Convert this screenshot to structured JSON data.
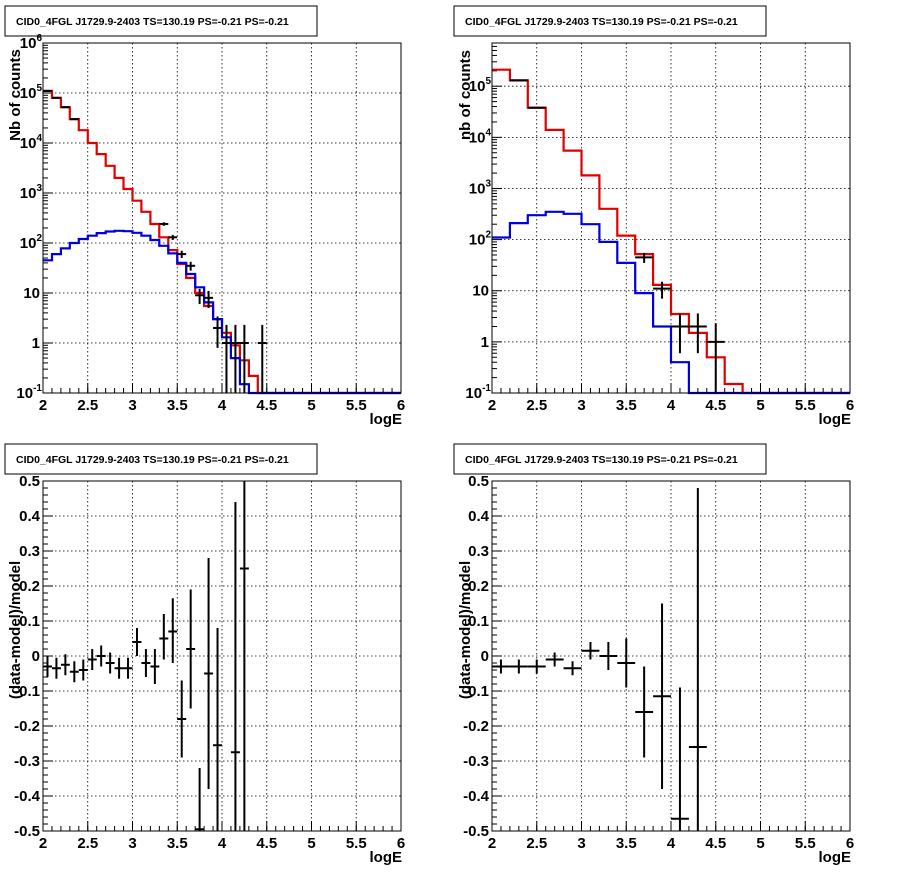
{
  "chart_data": [
    {
      "type": "histogram",
      "title": "CID0_4FGL J1729.9-2403 TS=130.19 PS=-0.21 PS=-0.21",
      "xlabel": "logE",
      "ylabel": "Nb of counts",
      "xlim": [
        2,
        6
      ],
      "ylim": [
        0.1,
        1000000
      ],
      "ylog": true,
      "grid": true,
      "bin_width": 0.1,
      "series": [
        {
          "color": "#e00000",
          "kind": "step",
          "x_start": 2.0,
          "values": [
            110000,
            80000,
            52000,
            30000,
            18000,
            10000,
            6000,
            3500,
            2000,
            1200,
            700,
            420,
            240,
            130,
            72,
            38,
            20,
            10,
            5.5,
            3,
            1.6,
            0.9,
            0.45,
            0.22,
            0.1,
            0.1,
            0.1,
            0.1,
            0.1,
            0.1,
            0.1,
            0.1,
            0.1,
            0.1,
            0.1,
            0.1,
            0.1,
            0.1,
            0.1,
            0.1
          ]
        },
        {
          "color": "#0000dd",
          "kind": "step",
          "x_start": 2.0,
          "values": [
            45,
            60,
            78,
            100,
            120,
            140,
            158,
            170,
            175,
            172,
            160,
            140,
            115,
            88,
            62,
            40,
            24,
            13,
            6.5,
            3,
            1.3,
            0.5,
            0.15,
            0.1,
            0.1,
            0.1,
            0.1,
            0.1,
            0.1,
            0.1,
            0.1,
            0.1,
            0.1,
            0.1,
            0.1,
            0.1,
            0.1,
            0.1,
            0.1,
            0.1
          ]
        },
        {
          "color": "#000000",
          "kind": "points",
          "points": [
            {
              "x": 2.05,
              "y": 110000,
              "lo": 109000,
              "hi": 111000
            },
            {
              "x": 2.15,
              "y": 80000,
              "lo": 79000,
              "hi": 81000
            },
            {
              "x": 2.25,
              "y": 52000,
              "lo": 51000,
              "hi": 53000
            },
            {
              "x": 2.35,
              "y": 30000,
              "lo": 29500,
              "hi": 30500
            },
            {
              "x": 3.35,
              "y": 240,
              "lo": 220,
              "hi": 260
            },
            {
              "x": 3.45,
              "y": 130,
              "lo": 115,
              "hi": 145
            },
            {
              "x": 3.55,
              "y": 60,
              "lo": 50,
              "hi": 70
            },
            {
              "x": 3.65,
              "y": 35,
              "lo": 28,
              "hi": 42
            },
            {
              "x": 3.75,
              "y": 9,
              "lo": 6,
              "hi": 12
            },
            {
              "x": 3.85,
              "y": 8,
              "lo": 5,
              "hi": 11
            },
            {
              "x": 3.95,
              "y": 2,
              "lo": 0.8,
              "hi": 3.4
            },
            {
              "x": 4.05,
              "y": 1,
              "lo": 0.1,
              "hi": 2.3
            },
            {
              "x": 4.15,
              "y": 1,
              "lo": 0.1,
              "hi": 2.3
            },
            {
              "x": 4.25,
              "y": 1,
              "lo": 0.1,
              "hi": 2.3
            },
            {
              "x": 4.45,
              "y": 1,
              "lo": 0.1,
              "hi": 2.3
            }
          ]
        }
      ],
      "x_ticks": [
        "2",
        "2.5",
        "3",
        "3.5",
        "4",
        "4.5",
        "5",
        "5.5",
        "6"
      ],
      "y_ticks": [
        {
          "base": "10",
          "exp": "-1"
        },
        {
          "base": "1",
          "exp": ""
        },
        {
          "base": "10",
          "exp": ""
        },
        {
          "base": "10",
          "exp": "2"
        },
        {
          "base": "10",
          "exp": "3"
        },
        {
          "base": "10",
          "exp": "4"
        },
        {
          "base": "10",
          "exp": "5"
        },
        {
          "base": "10",
          "exp": "6"
        }
      ]
    },
    {
      "type": "histogram",
      "title": "CID0_4FGL J1729.9-2403 TS=130.19 PS=-0.21 PS=-0.21",
      "xlabel": "logE",
      "ylabel": "nb of counts",
      "xlim": [
        2,
        6
      ],
      "ylim": [
        0.1,
        700000
      ],
      "ylog": true,
      "grid": true,
      "bin_width": 0.2,
      "series": [
        {
          "color": "#e00000",
          "kind": "step",
          "x_start": 2.0,
          "values": [
            210000,
            130000,
            38000,
            14000,
            5500,
            1800,
            400,
            120,
            52,
            13,
            3.5,
            1.5,
            0.5,
            0.15,
            0.1,
            0.1,
            0.1,
            0.1,
            0.1,
            0.1
          ]
        },
        {
          "color": "#0000dd",
          "kind": "step",
          "x_start": 2.0,
          "values": [
            110,
            210,
            300,
            350,
            320,
            200,
            90,
            35,
            9,
            2,
            0.4,
            0.1,
            0.1,
            0.1,
            0.1,
            0.1,
            0.1,
            0.1,
            0.1,
            0.1
          ]
        },
        {
          "color": "#000000",
          "kind": "points",
          "points": [
            {
              "x": 2.3,
              "y": 130000,
              "lo": 128000,
              "hi": 132000
            },
            {
              "x": 2.5,
              "y": 38000,
              "lo": 37000,
              "hi": 39000
            },
            {
              "x": 3.7,
              "y": 45,
              "lo": 35,
              "hi": 55
            },
            {
              "x": 3.9,
              "y": 11,
              "lo": 7,
              "hi": 15
            },
            {
              "x": 4.1,
              "y": 2,
              "lo": 0.6,
              "hi": 3.6
            },
            {
              "x": 4.3,
              "y": 2,
              "lo": 0.6,
              "hi": 3.6
            },
            {
              "x": 4.5,
              "y": 1,
              "lo": 0.1,
              "hi": 2.3
            }
          ]
        }
      ],
      "x_ticks": [
        "2",
        "2.5",
        "3",
        "3.5",
        "4",
        "4.5",
        "5",
        "5.5",
        "6"
      ],
      "y_ticks": [
        {
          "base": "10",
          "exp": "-1"
        },
        {
          "base": "1",
          "exp": ""
        },
        {
          "base": "10",
          "exp": ""
        },
        {
          "base": "10",
          "exp": "2"
        },
        {
          "base": "10",
          "exp": "3"
        },
        {
          "base": "10",
          "exp": "4"
        },
        {
          "base": "10",
          "exp": "5"
        }
      ]
    },
    {
      "type": "scatter",
      "title": "CID0_4FGL J1729.9-2403 TS=130.19 PS=-0.21 PS=-0.21",
      "xlabel": "logE",
      "ylabel": "(data-model)/model",
      "xlim": [
        2,
        6
      ],
      "ylim": [
        -0.5,
        0.5
      ],
      "ylog": false,
      "grid": true,
      "series": [
        {
          "color": "#000000",
          "kind": "points",
          "xerr": 0.05,
          "points": [
            {
              "x": 2.05,
              "y": -0.03,
              "lo": -0.06,
              "hi": 0.0
            },
            {
              "x": 2.15,
              "y": -0.035,
              "lo": -0.065,
              "hi": -0.005
            },
            {
              "x": 2.25,
              "y": -0.025,
              "lo": -0.055,
              "hi": 0.005
            },
            {
              "x": 2.35,
              "y": -0.045,
              "lo": -0.075,
              "hi": -0.015
            },
            {
              "x": 2.45,
              "y": -0.04,
              "lo": -0.07,
              "hi": -0.01
            },
            {
              "x": 2.55,
              "y": -0.01,
              "lo": -0.04,
              "hi": 0.02
            },
            {
              "x": 2.65,
              "y": 0.0,
              "lo": -0.03,
              "hi": 0.03
            },
            {
              "x": 2.75,
              "y": -0.02,
              "lo": -0.05,
              "hi": 0.01
            },
            {
              "x": 2.85,
              "y": -0.035,
              "lo": -0.065,
              "hi": -0.005
            },
            {
              "x": 2.95,
              "y": -0.035,
              "lo": -0.065,
              "hi": -0.005
            },
            {
              "x": 3.05,
              "y": 0.04,
              "lo": 0.0,
              "hi": 0.08
            },
            {
              "x": 3.15,
              "y": -0.02,
              "lo": -0.06,
              "hi": 0.02
            },
            {
              "x": 3.25,
              "y": -0.03,
              "lo": -0.08,
              "hi": 0.02
            },
            {
              "x": 3.35,
              "y": 0.05,
              "lo": -0.01,
              "hi": 0.12
            },
            {
              "x": 3.45,
              "y": 0.07,
              "lo": -0.02,
              "hi": 0.165
            },
            {
              "x": 3.55,
              "y": -0.18,
              "lo": -0.29,
              "hi": -0.07
            },
            {
              "x": 3.65,
              "y": 0.02,
              "lo": -0.15,
              "hi": 0.19
            },
            {
              "x": 3.75,
              "y": -0.495,
              "lo": -0.5,
              "hi": -0.32
            },
            {
              "x": 3.85,
              "y": -0.05,
              "lo": -0.38,
              "hi": 0.28
            },
            {
              "x": 3.95,
              "y": -0.255,
              "lo": -0.5,
              "hi": 0.08
            },
            {
              "x": 4.15,
              "y": -0.275,
              "lo": -0.5,
              "hi": 0.44
            },
            {
              "x": 4.25,
              "y": 0.25,
              "lo": -0.5,
              "hi": 0.5
            }
          ]
        }
      ],
      "x_ticks": [
        "2",
        "2.5",
        "3",
        "3.5",
        "4",
        "4.5",
        "5",
        "5.5",
        "6"
      ],
      "y_ticks": [
        "-0.5",
        "-0.4",
        "-0.3",
        "-0.2",
        "-0.1",
        "0",
        "0.1",
        "0.2",
        "0.3",
        "0.4",
        "0.5"
      ]
    },
    {
      "type": "scatter",
      "title": "CID0_4FGL J1729.9-2403 TS=130.19 PS=-0.21 PS=-0.21",
      "xlabel": "logE",
      "ylabel": "(data-model)/model",
      "xlim": [
        2,
        6
      ],
      "ylim": [
        -0.5,
        0.5
      ],
      "ylog": false,
      "grid": true,
      "series": [
        {
          "color": "#000000",
          "kind": "points",
          "xerr": 0.1,
          "points": [
            {
              "x": 2.1,
              "y": -0.03,
              "lo": -0.05,
              "hi": -0.01
            },
            {
              "x": 2.3,
              "y": -0.03,
              "lo": -0.05,
              "hi": -0.01
            },
            {
              "x": 2.5,
              "y": -0.03,
              "lo": -0.05,
              "hi": -0.01
            },
            {
              "x": 2.7,
              "y": -0.01,
              "lo": -0.03,
              "hi": 0.01
            },
            {
              "x": 2.9,
              "y": -0.035,
              "lo": -0.055,
              "hi": -0.015
            },
            {
              "x": 3.1,
              "y": 0.015,
              "lo": -0.01,
              "hi": 0.04
            },
            {
              "x": 3.3,
              "y": 0.0,
              "lo": -0.04,
              "hi": 0.04
            },
            {
              "x": 3.5,
              "y": -0.02,
              "lo": -0.09,
              "hi": 0.05
            },
            {
              "x": 3.7,
              "y": -0.16,
              "lo": -0.29,
              "hi": -0.03
            },
            {
              "x": 3.9,
              "y": -0.115,
              "lo": -0.38,
              "hi": 0.15
            },
            {
              "x": 4.1,
              "y": -0.465,
              "lo": -0.5,
              "hi": -0.09
            },
            {
              "x": 4.3,
              "y": -0.26,
              "lo": -0.5,
              "hi": 0.48
            }
          ]
        }
      ],
      "x_ticks": [
        "2",
        "2.5",
        "3",
        "3.5",
        "4",
        "4.5",
        "5",
        "5.5",
        "6"
      ],
      "y_ticks": [
        "-0.5",
        "-0.4",
        "-0.3",
        "-0.2",
        "-0.1",
        "0",
        "0.1",
        "0.2",
        "0.3",
        "0.4",
        "0.5"
      ]
    }
  ]
}
